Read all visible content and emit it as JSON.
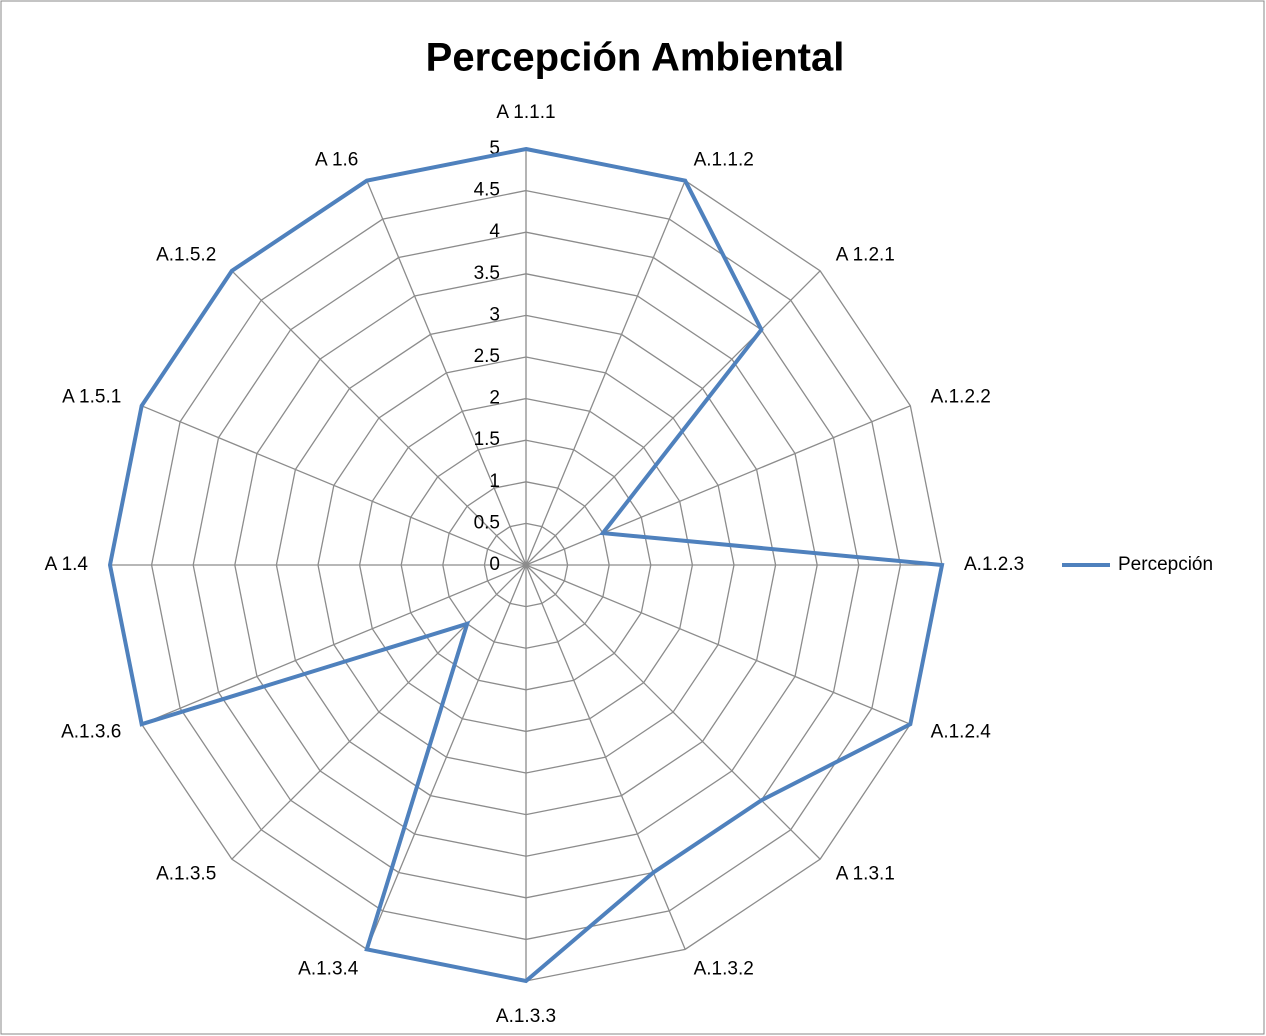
{
  "chart_data": {
    "type": "radar",
    "title": "Percepción Ambiental",
    "categories": [
      "A 1.1.1",
      "A.1.1.2",
      "A 1.2.1",
      "A.1.2.2",
      "A.1.2.3",
      "A.1.2.4",
      "A 1.3.1",
      "A.1.3.2",
      "A.1.3.3",
      "A.1.3.4",
      "A.1.3.5",
      "A.1.3.6",
      "A 1.4",
      "A 1.5.1",
      "A.1.5.2",
      "A 1.6"
    ],
    "series": [
      {
        "name": "Percepción",
        "color": "#4f81bd",
        "values": [
          5,
          5,
          4,
          1,
          5,
          5,
          4,
          4,
          5,
          5,
          1,
          5,
          5,
          5,
          5,
          5
        ]
      }
    ],
    "ylim": [
      0,
      5
    ],
    "yticks": [
      0,
      0.5,
      1,
      1.5,
      2,
      2.5,
      3,
      3.5,
      4,
      4.5,
      5
    ],
    "grid": true,
    "legend": "right"
  }
}
